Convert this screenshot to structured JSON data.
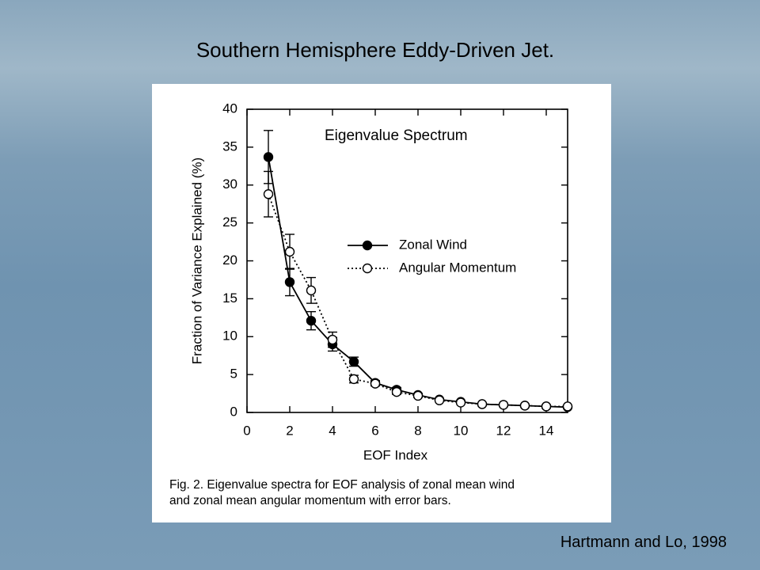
{
  "title": "Southern Hemisphere Eddy-Driven Jet.",
  "citation": "Hartmann and Lo, 1998",
  "chart_data": {
    "type": "line",
    "title": "Eigenvalue Spectrum",
    "x_label": "EOF Index",
    "y_label": "Fraction of Variance Explained (%)",
    "caption": [
      "Fig. 2. Eigenvalue spectra for EOF analysis of zonal mean wind",
      "and zonal mean angular momentum with error bars."
    ],
    "x": [
      1,
      2,
      3,
      4,
      5,
      6,
      7,
      8,
      9,
      10,
      11,
      12,
      13,
      14,
      15
    ],
    "series": [
      {
        "name": "Zonal Wind",
        "color": "#000000",
        "marker": "filled",
        "linestyle": "solid",
        "values": [
          33.7,
          17.2,
          12.1,
          9.0,
          6.7,
          3.9,
          3.0,
          2.3,
          1.7,
          1.4,
          1.1,
          1.0,
          0.9,
          0.8,
          0.7
        ],
        "errors": [
          3.5,
          1.8,
          1.2,
          0.9,
          0.6,
          0.3,
          0.3,
          0.2,
          null,
          null,
          null,
          null,
          null,
          0.2,
          null
        ]
      },
      {
        "name": "Angular Momentum",
        "color": "#000000",
        "marker": "open",
        "linestyle": "dotted",
        "values": [
          28.8,
          21.2,
          16.1,
          9.6,
          4.4,
          3.8,
          2.7,
          2.2,
          1.6,
          1.3,
          1.1,
          1.0,
          0.9,
          0.8,
          0.8
        ],
        "errors": [
          3.0,
          2.3,
          1.7,
          1.0,
          0.5,
          0.3,
          0.3,
          0.2,
          null,
          null,
          null,
          null,
          null,
          null,
          null
        ]
      }
    ],
    "xlim": [
      0,
      15
    ],
    "xticks": [
      0,
      2,
      4,
      6,
      8,
      10,
      12,
      14
    ],
    "ylim": [
      0,
      40
    ],
    "yticks": [
      0,
      5,
      10,
      15,
      20,
      25,
      30,
      35,
      40
    ]
  }
}
